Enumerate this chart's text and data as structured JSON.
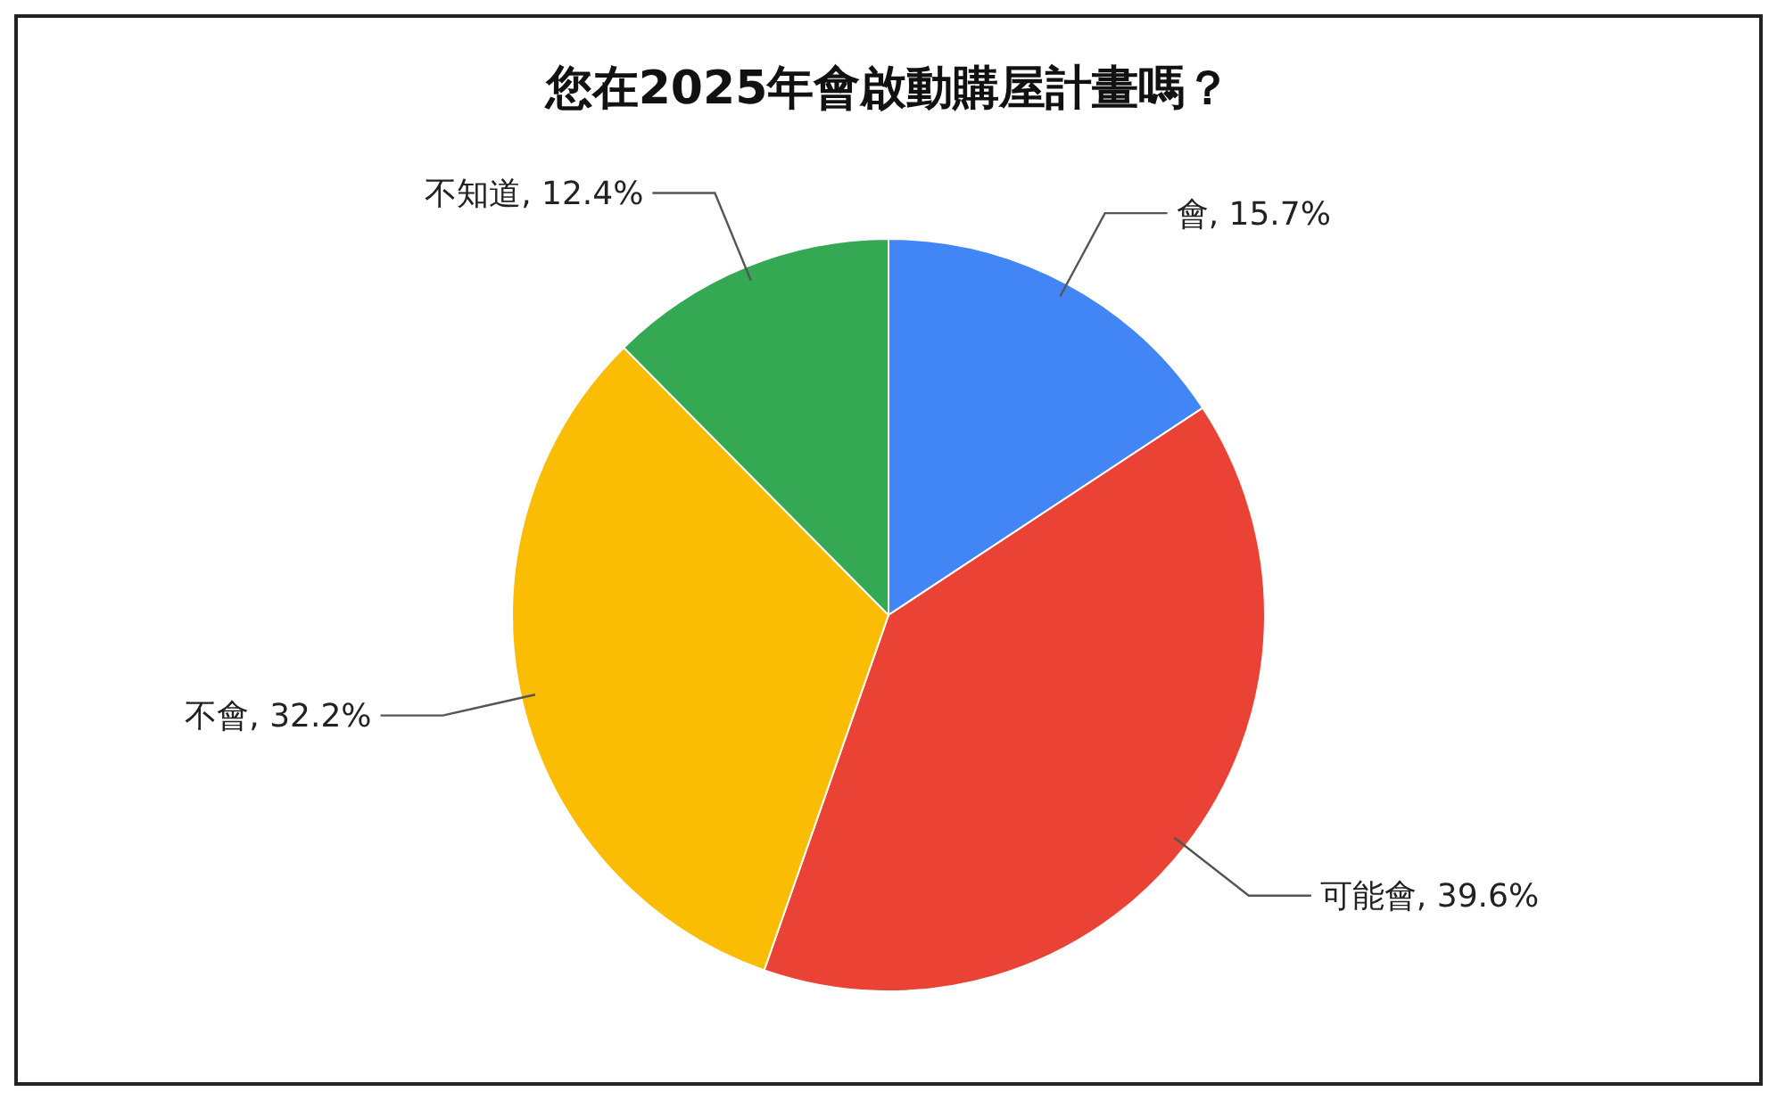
{
  "chart_data": {
    "type": "pie",
    "title": "您在2025年會啟動購屋計畫嗎？",
    "categories": [
      "會",
      "可能會",
      "不會",
      "不知道"
    ],
    "values": [
      15.7,
      39.6,
      32.2,
      12.4
    ],
    "value_labels": [
      "15.7%",
      "39.6%",
      "32.2%",
      "12.4%"
    ],
    "colors": [
      "#4285f4",
      "#ea4335",
      "#fbbc04",
      "#34a853"
    ],
    "legend": false
  }
}
